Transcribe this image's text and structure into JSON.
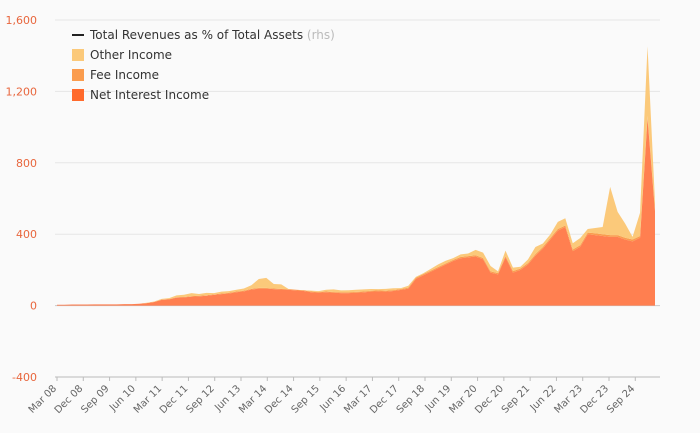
{
  "chart_data": {
    "type": "area",
    "stacked": true,
    "x_start": "Mar 08",
    "x_end": "Dec 24",
    "x_step_months": 3,
    "x_tick_labels": [
      "Mar 08",
      "Dec 08",
      "Sep 09",
      "Jun 10",
      "Mar 11",
      "Dec 11",
      "Sep 12",
      "Jun 13",
      "Mar 14",
      "Dec 14",
      "Sep 15",
      "Jun 16",
      "Mar 17",
      "Dec 17",
      "Sep 18",
      "Jun 19",
      "Mar 20",
      "Dec 20",
      "Sep 21",
      "Jun 22",
      "Mar 23",
      "Dec 23",
      "Sep 24"
    ],
    "y_ticks": [
      -400,
      0,
      400,
      800,
      1200,
      1600
    ],
    "y_tick_labels": [
      "-400",
      "0",
      "400",
      "800",
      "1,200",
      "1,600"
    ],
    "ylim": [
      -400,
      1600
    ],
    "grid": true,
    "legend_position": "top-left",
    "legend": [
      {
        "label": "Total Revenues as % of Total Assets",
        "suffix": "(rhs)",
        "marker": "line",
        "color": "#222222"
      },
      {
        "label": "Other Income",
        "marker": "square",
        "color": "#fbc97a"
      },
      {
        "label": "Fee Income",
        "marker": "square",
        "color": "#fa9c4e"
      },
      {
        "label": "Net Interest Income",
        "marker": "square",
        "color": "#ff6a2c"
      }
    ],
    "series": [
      {
        "name": "Net Interest Income",
        "color": "#ff7f50",
        "values": [
          5,
          5,
          6,
          6,
          6,
          7,
          7,
          7,
          7,
          8,
          8,
          10,
          14,
          20,
          32,
          35,
          45,
          46,
          50,
          52,
          55,
          60,
          64,
          68,
          75,
          80,
          90,
          95,
          95,
          92,
          90,
          88,
          85,
          82,
          75,
          72,
          75,
          72,
          70,
          70,
          72,
          74,
          78,
          80,
          78,
          82,
          88,
          95,
          150,
          170,
          190,
          210,
          230,
          250,
          265,
          270,
          275,
          260,
          185,
          175,
          270,
          185,
          200,
          230,
          280,
          320,
          370,
          420,
          440,
          305,
          330,
          400,
          395,
          390,
          385,
          385,
          370,
          360,
          380,
          1050,
          530
        ]
      },
      {
        "name": "Fee Income",
        "color": "#fa9c4e",
        "values": [
          0,
          0,
          0,
          0,
          0,
          0,
          0,
          0,
          0,
          0,
          0,
          0,
          0,
          0,
          2,
          2,
          2,
          2,
          3,
          3,
          3,
          3,
          4,
          4,
          4,
          4,
          4,
          4,
          4,
          4,
          4,
          4,
          4,
          4,
          4,
          4,
          4,
          4,
          5,
          5,
          5,
          5,
          5,
          5,
          5,
          5,
          5,
          6,
          6,
          6,
          6,
          6,
          6,
          6,
          7,
          7,
          7,
          7,
          7,
          7,
          8,
          8,
          8,
          8,
          8,
          8,
          9,
          9,
          9,
          9,
          9,
          9,
          10,
          10,
          10,
          10,
          10,
          10,
          10,
          12,
          10
        ]
      },
      {
        "name": "Other Income",
        "color": "#fbc97a",
        "values": [
          0,
          0,
          0,
          0,
          0,
          0,
          0,
          0,
          0,
          0,
          0,
          0,
          2,
          3,
          4,
          5,
          10,
          13,
          17,
          10,
          13,
          7,
          10,
          9,
          10,
          12,
          20,
          50,
          56,
          25,
          25,
          0,
          0,
          0,
          5,
          5,
          10,
          15,
          10,
          11,
          12,
          12,
          10,
          7,
          11,
          10,
          5,
          10,
          5,
          5,
          10,
          15,
          15,
          10,
          15,
          15,
          30,
          30,
          30,
          10,
          30,
          20,
          10,
          20,
          40,
          20,
          20,
          40,
          40,
          35,
          40,
          20,
          30,
          40,
          270,
          130,
          80,
          15,
          130,
          390,
          40
        ]
      }
    ],
    "rhs_series": {
      "name": "Total Revenues as % of Total Assets",
      "values": []
    }
  }
}
